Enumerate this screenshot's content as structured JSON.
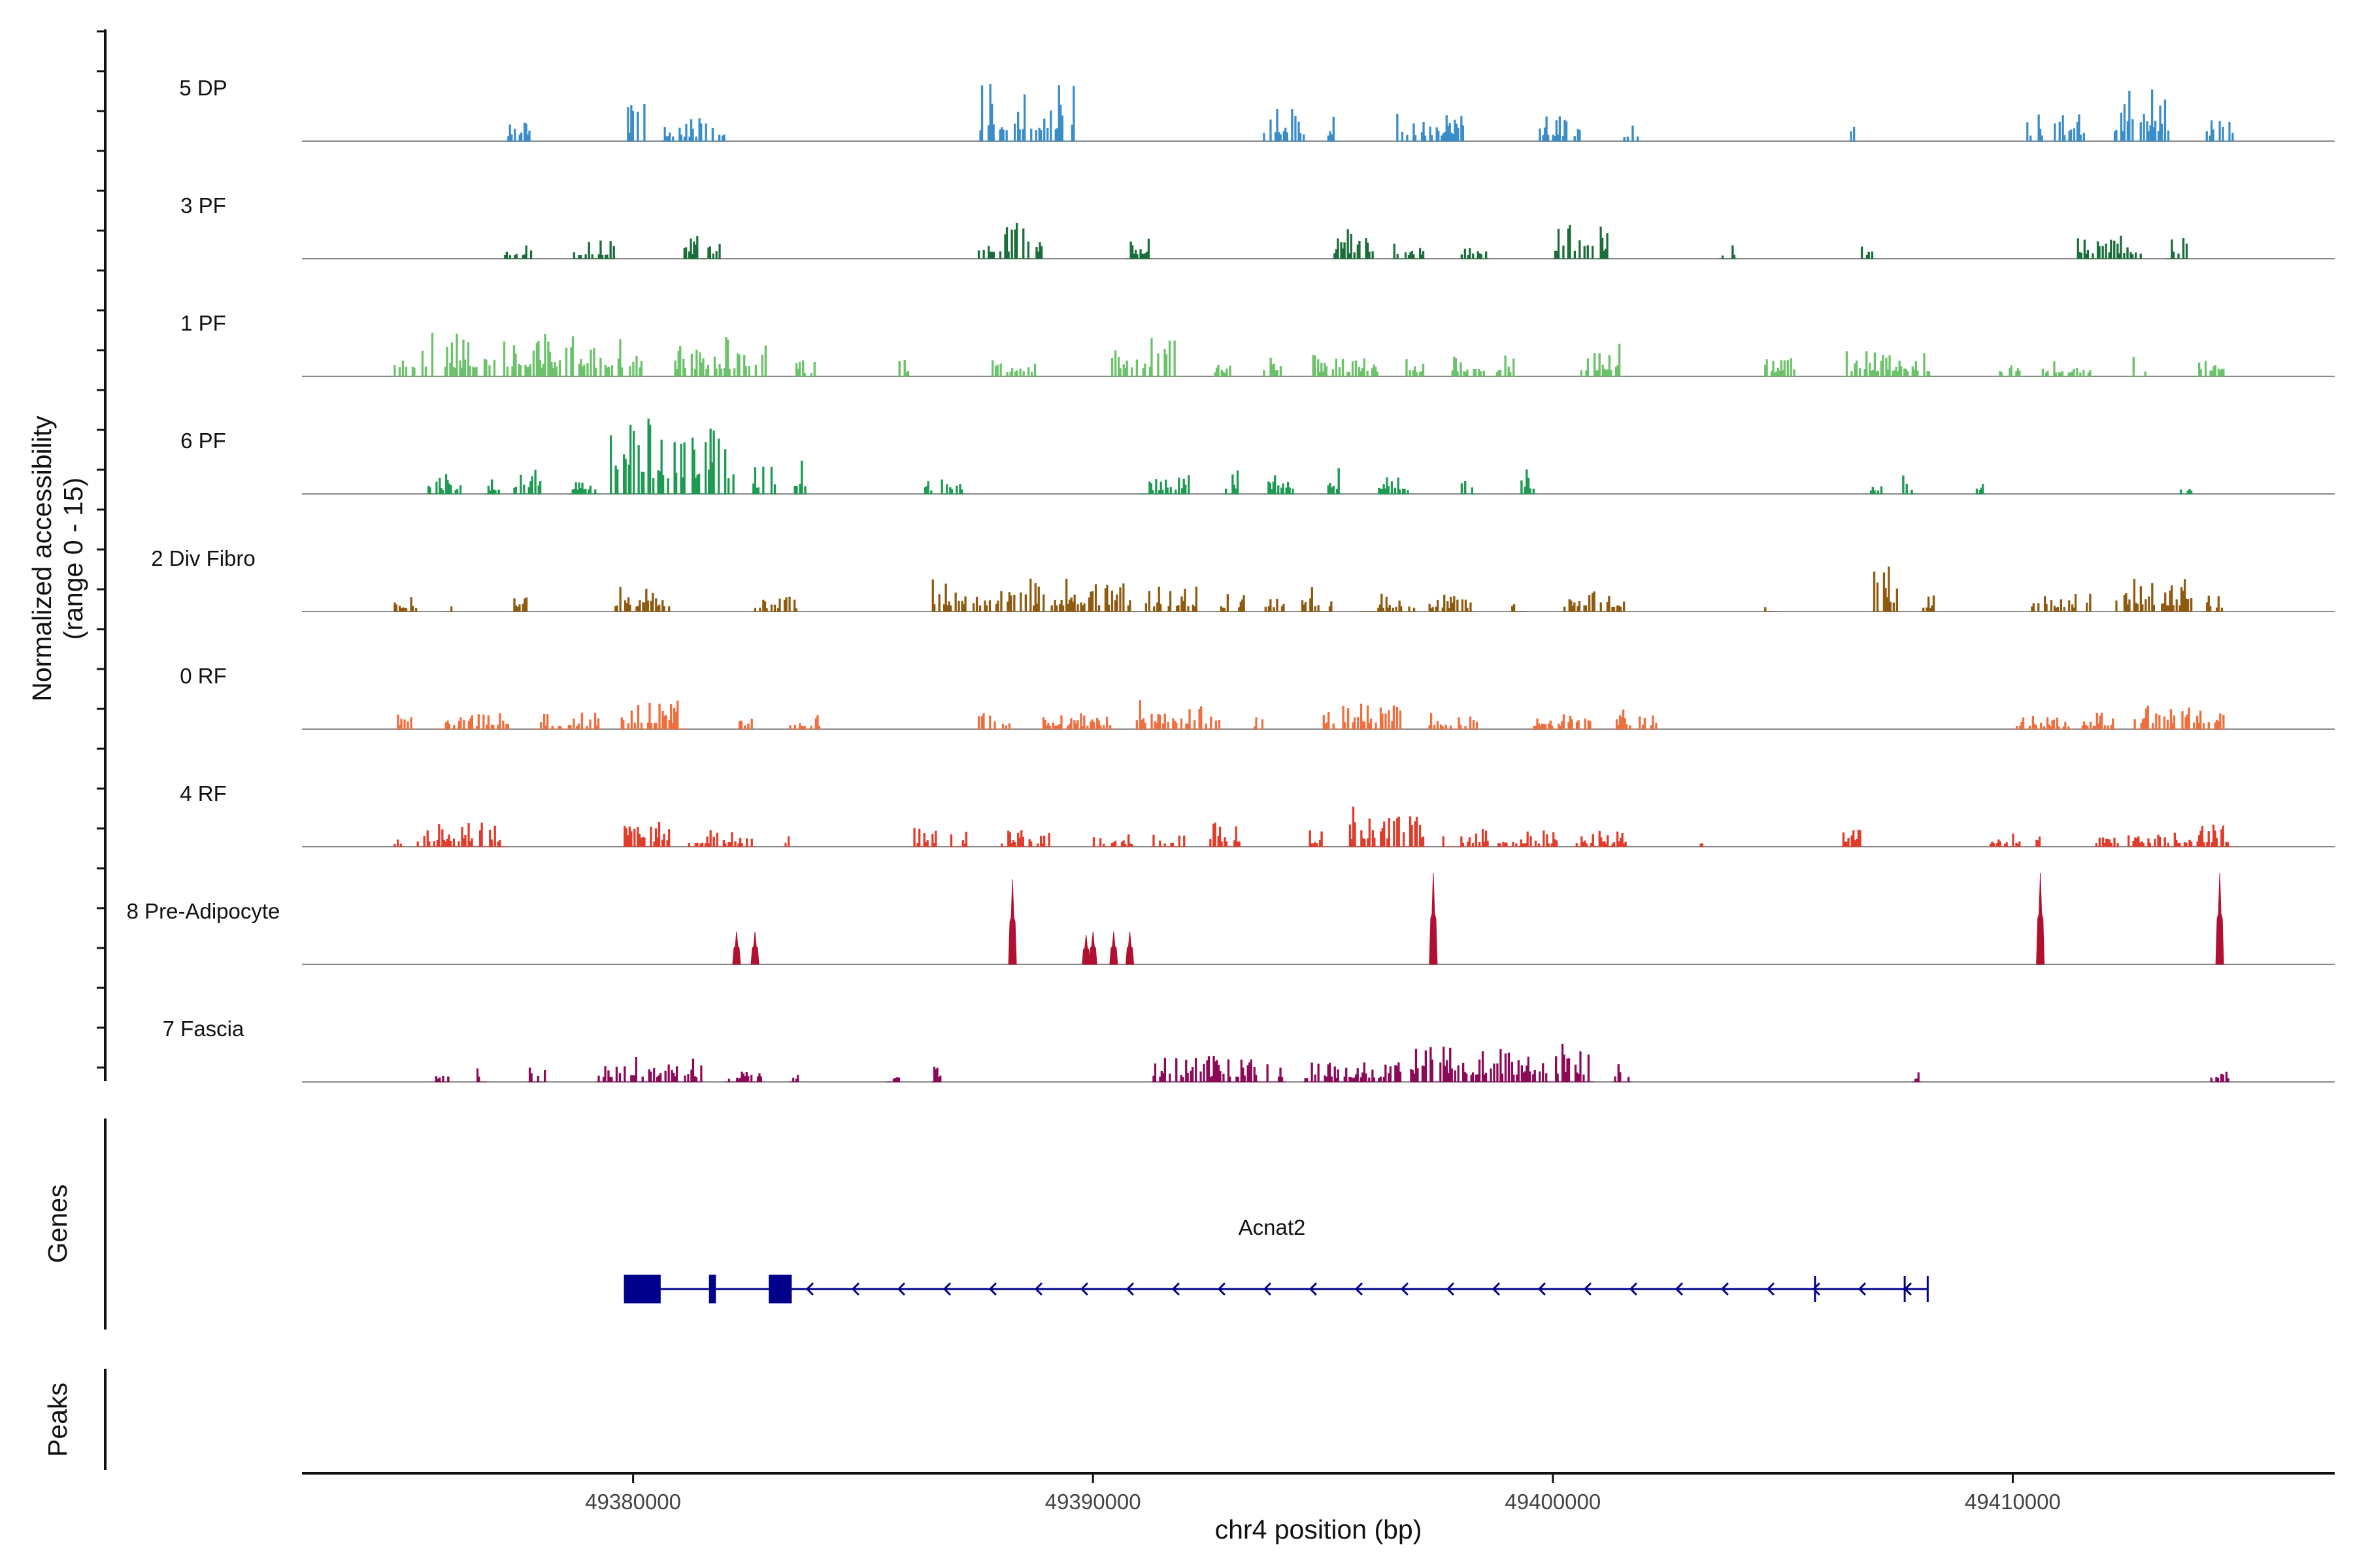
{
  "chart_data": {
    "type": "genome-coverage",
    "y_axis_title_line1": "Normalized accessibility",
    "y_axis_title_line2": "(range 0 - 15)",
    "genes_panel_label": "Genes",
    "peaks_panel_label": "Peaks",
    "x_axis_title": "chr4 position (bp)",
    "x_range": [
      49372800,
      49417000
    ],
    "x_ticks": [
      49380000,
      49390000,
      49400000,
      49410000
    ],
    "y_range": [
      0,
      15
    ],
    "tracks": [
      {
        "name": "5 DP",
        "color": "#3A8DC9",
        "seed": 11,
        "regions": [
          [
            49377200,
            49377800,
            4.0
          ],
          [
            49379800,
            49380300,
            7.0
          ],
          [
            49380600,
            49382000,
            3.5
          ],
          [
            49387500,
            49389600,
            9.0
          ],
          [
            49393700,
            49394600,
            5.5
          ],
          [
            49395100,
            49395400,
            4.5
          ],
          [
            49396600,
            49398100,
            4.5
          ],
          [
            49399700,
            49400600,
            4.0
          ],
          [
            49401500,
            49401900,
            3.0
          ],
          [
            49406400,
            49406600,
            3.5
          ],
          [
            49410300,
            49411600,
            4.5
          ],
          [
            49412200,
            49413400,
            8.0
          ],
          [
            49414200,
            49414800,
            4.0
          ]
        ]
      },
      {
        "name": "3 PF",
        "color": "#1B6E3A",
        "seed": 22,
        "regions": [
          [
            49377200,
            49377800,
            3.0
          ],
          [
            49378700,
            49379600,
            3.0
          ],
          [
            49381100,
            49381900,
            3.5
          ],
          [
            49387500,
            49388900,
            5.5
          ],
          [
            49390700,
            49391300,
            3.5
          ],
          [
            49395200,
            49396100,
            4.5
          ],
          [
            49396500,
            49397200,
            3.0
          ],
          [
            49398000,
            49398600,
            3.0
          ],
          [
            49400000,
            49401200,
            6.5
          ],
          [
            49403600,
            49404000,
            2.5
          ],
          [
            49406700,
            49407000,
            2.5
          ],
          [
            49411400,
            49412800,
            3.5
          ],
          [
            49413300,
            49413800,
            4.0
          ]
        ]
      },
      {
        "name": "1 PF",
        "color": "#6CC26A",
        "seed": 33,
        "regions": [
          [
            49374800,
            49380200,
            7.0
          ],
          [
            49380900,
            49382900,
            6.0
          ],
          [
            49383500,
            49384000,
            2.5
          ],
          [
            49385700,
            49386000,
            3.0
          ],
          [
            49387800,
            49388900,
            3.5
          ],
          [
            49390400,
            49391900,
            6.0
          ],
          [
            49392600,
            49393000,
            2.5
          ],
          [
            49393700,
            49394100,
            3.0
          ],
          [
            49394700,
            49396200,
            3.5
          ],
          [
            49396800,
            49397200,
            3.0
          ],
          [
            49397800,
            49399200,
            3.5
          ],
          [
            49400600,
            49401500,
            5.0
          ],
          [
            49404600,
            49405300,
            3.0
          ],
          [
            49406300,
            49408200,
            4.0
          ],
          [
            49409600,
            49410200,
            3.0
          ],
          [
            49410600,
            49411700,
            3.0
          ],
          [
            49412500,
            49412900,
            3.0
          ],
          [
            49414000,
            49414600,
            4.5
          ]
        ]
      },
      {
        "name": "6 PF",
        "color": "#1E9A52",
        "seed": 44,
        "regions": [
          [
            49375500,
            49376300,
            3.0
          ],
          [
            49376800,
            49377100,
            2.5
          ],
          [
            49377400,
            49378000,
            4.5
          ],
          [
            49378600,
            49379300,
            3.5
          ],
          [
            49379500,
            49382200,
            13.0
          ],
          [
            49382600,
            49383100,
            4.5
          ],
          [
            49383500,
            49383800,
            6.0
          ],
          [
            49386300,
            49386500,
            2.5
          ],
          [
            49386700,
            49387200,
            3.5
          ],
          [
            49391000,
            49392100,
            3.0
          ],
          [
            49392800,
            49393200,
            4.0
          ],
          [
            49393800,
            49394400,
            3.5
          ],
          [
            49395100,
            49395400,
            4.0
          ],
          [
            49396200,
            49396900,
            3.0
          ],
          [
            49398000,
            49398300,
            2.5
          ],
          [
            49399300,
            49399600,
            4.0
          ],
          [
            49406900,
            49407200,
            2.5
          ],
          [
            49407600,
            49407900,
            3.0
          ],
          [
            49409200,
            49409400,
            3.0
          ],
          [
            49413600,
            49413900,
            2.5
          ]
        ]
      },
      {
        "name": "2 Div Fibro",
        "color": "#8E5A10",
        "seed": 55,
        "regions": [
          [
            49374800,
            49375300,
            2.5
          ],
          [
            49375900,
            49376100,
            2.5
          ],
          [
            49377400,
            49377700,
            2.5
          ],
          [
            49379600,
            49380800,
            4.0
          ],
          [
            49382600,
            49383600,
            2.5
          ],
          [
            49386500,
            49391000,
            5.0
          ],
          [
            49391100,
            49392300,
            4.0
          ],
          [
            49392700,
            49393300,
            3.0
          ],
          [
            49393700,
            49394200,
            3.5
          ],
          [
            49394500,
            49395200,
            4.0
          ],
          [
            49395800,
            49397000,
            3.0
          ],
          [
            49397300,
            49398300,
            2.5
          ],
          [
            49399100,
            49399400,
            2.5
          ],
          [
            49400200,
            49401600,
            3.5
          ],
          [
            49404600,
            49404900,
            3.5
          ],
          [
            49406900,
            49407500,
            7.0
          ],
          [
            49408000,
            49408300,
            2.5
          ],
          [
            49410400,
            49411700,
            3.0
          ],
          [
            49412200,
            49413900,
            5.0
          ],
          [
            49414100,
            49414600,
            3.0
          ]
        ]
      },
      {
        "name": "0 RF",
        "color": "#EE6E3E",
        "seed": 66,
        "regions": [
          [
            49374800,
            49375300,
            2.5
          ],
          [
            49375700,
            49377300,
            2.5
          ],
          [
            49377800,
            49379300,
            2.5
          ],
          [
            49379700,
            49381200,
            4.5
          ],
          [
            49382300,
            49382600,
            2.5
          ],
          [
            49383400,
            49384100,
            2.5
          ],
          [
            49387500,
            49388200,
            2.5
          ],
          [
            49388800,
            49390500,
            2.5
          ],
          [
            49390900,
            49392800,
            4.5
          ],
          [
            49393500,
            49393700,
            2.0
          ],
          [
            49395000,
            49396700,
            4.5
          ],
          [
            49397300,
            49398400,
            2.5
          ],
          [
            49399500,
            49400900,
            2.5
          ],
          [
            49401300,
            49402300,
            3.0
          ],
          [
            49410000,
            49411300,
            2.0
          ],
          [
            49411500,
            49412300,
            2.5
          ],
          [
            49412600,
            49414600,
            4.5
          ]
        ]
      },
      {
        "name": "4 RF",
        "color": "#E03C2C",
        "seed": 77,
        "regions": [
          [
            49374800,
            49375000,
            2.0
          ],
          [
            49375300,
            49377300,
            4.0
          ],
          [
            49379800,
            49380800,
            4.0
          ],
          [
            49381200,
            49382600,
            2.5
          ],
          [
            49383300,
            49383400,
            2.5
          ],
          [
            49386100,
            49386600,
            3.0
          ],
          [
            49386900,
            49387300,
            2.5
          ],
          [
            49388000,
            49389100,
            2.5
          ],
          [
            49390000,
            49390900,
            2.0
          ],
          [
            49391300,
            49392000,
            2.5
          ],
          [
            49392500,
            49393200,
            4.0
          ],
          [
            49394700,
            49395100,
            2.5
          ],
          [
            49395500,
            49397200,
            6.5
          ],
          [
            49397600,
            49398600,
            3.0
          ],
          [
            49398800,
            49400100,
            2.5
          ],
          [
            49400500,
            49401600,
            2.5
          ],
          [
            49403200,
            49403300,
            2.0
          ],
          [
            49406300,
            49406700,
            3.5
          ],
          [
            49409500,
            49410200,
            2.0
          ],
          [
            49410500,
            49410600,
            3.5
          ],
          [
            49411800,
            49412300,
            3.0
          ],
          [
            49412500,
            49413900,
            3.0
          ],
          [
            49414000,
            49414800,
            3.5
          ]
        ]
      },
      {
        "name": "8 Pre-Adipocyte",
        "color": "#B21030",
        "seed": 88,
        "spikes": [
          [
            49382250,
            5.0
          ],
          [
            49382650,
            5.0
          ],
          [
            49388250,
            13.0
          ],
          [
            49389850,
            4.5
          ],
          [
            49390000,
            5.0
          ],
          [
            49390450,
            5.0
          ],
          [
            49390800,
            5.0
          ],
          [
            49397400,
            14.0
          ],
          [
            49410600,
            14.0
          ],
          [
            49414500,
            14.0
          ]
        ]
      },
      {
        "name": "7 Fascia",
        "color": "#8B0A58",
        "seed": 99,
        "regions": [
          [
            49375700,
            49376000,
            2.5
          ],
          [
            49376600,
            49376800,
            2.5
          ],
          [
            49377700,
            49378100,
            2.5
          ],
          [
            49379200,
            49381500,
            4.0
          ],
          [
            49382000,
            49382800,
            2.5
          ],
          [
            49383400,
            49383600,
            2.5
          ],
          [
            49385500,
            49385800,
            2.5
          ],
          [
            49386500,
            49386700,
            2.5
          ],
          [
            49391300,
            49394200,
            4.0
          ],
          [
            49394600,
            49396700,
            3.0
          ],
          [
            49396900,
            49400900,
            6.0
          ],
          [
            49401300,
            49401700,
            3.0
          ],
          [
            49407800,
            49408000,
            2.0
          ],
          [
            49414300,
            49414700,
            2.5
          ]
        ]
      }
    ],
    "gene": {
      "name": "Acnat2",
      "start": 49379800,
      "end": 49408150,
      "strand": "-",
      "exons": [
        [
          49379800,
          49380600
        ],
        [
          49381650,
          49381800
        ],
        [
          49382950,
          49383450
        ]
      ],
      "small_ticks": [
        49405700,
        49407650,
        49408150
      ]
    }
  },
  "colors": {
    "gene": "#00008B",
    "baseline": "#888888",
    "axis": "#111111"
  }
}
